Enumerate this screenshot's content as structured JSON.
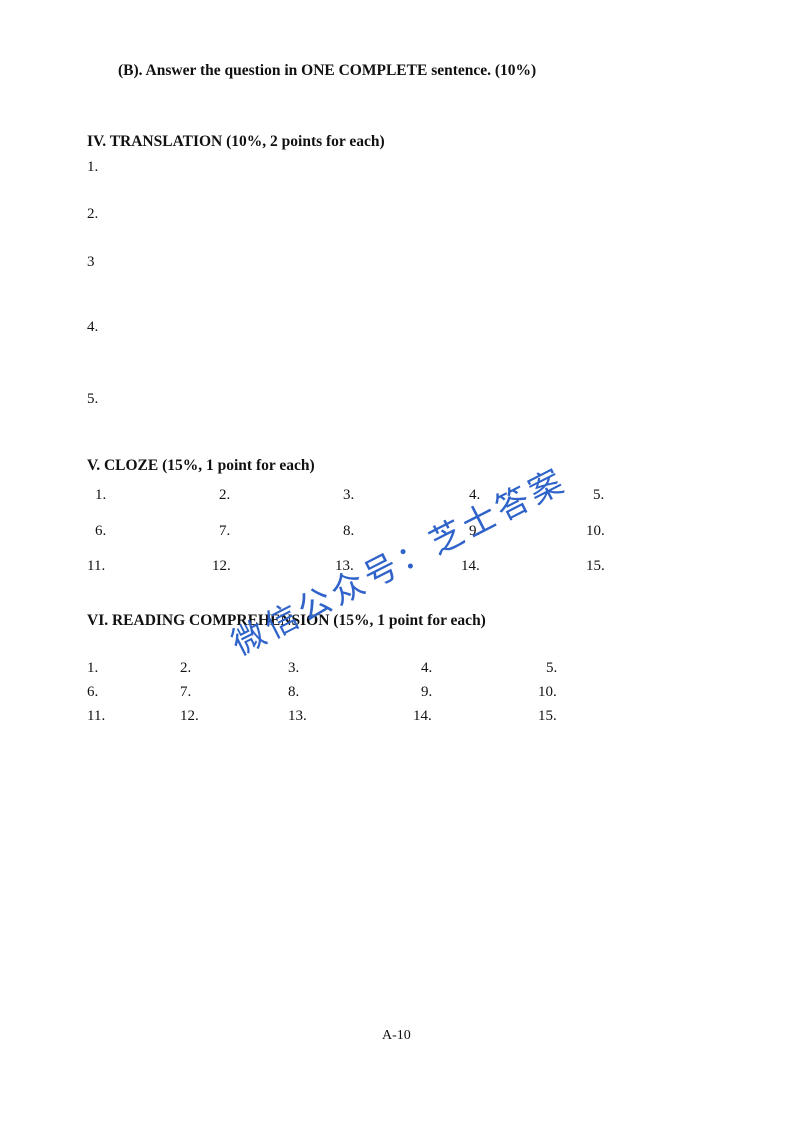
{
  "sections": {
    "b_heading": "(B). Answer the question in ONE COMPLETE sentence. (10%)",
    "translation": {
      "heading": "IV. TRANSLATION (10%, 2 points for each)",
      "items": [
        "1.",
        "2.",
        "3",
        "4.",
        "5."
      ]
    },
    "cloze": {
      "heading": "V. CLOZE (15%, 1 point for each)",
      "rows": [
        [
          "1.",
          "2.",
          "3.",
          "4.",
          "5."
        ],
        [
          "6.",
          "7.",
          "8.",
          "9.",
          "10."
        ],
        [
          "11.",
          "12.",
          "13.",
          "14.",
          "15."
        ]
      ]
    },
    "reading": {
      "heading": "VI. READING COMPREHENSION (15%, 1 point for each)",
      "rows": [
        [
          "1.",
          "2.",
          "3.",
          "4.",
          "5."
        ],
        [
          "6.",
          "7.",
          "8.",
          "9.",
          "10."
        ],
        [
          "11.",
          "12.",
          "13.",
          "14.",
          "15."
        ]
      ]
    }
  },
  "watermark": "微信公众号：芝士答案",
  "page_number": "A-10"
}
